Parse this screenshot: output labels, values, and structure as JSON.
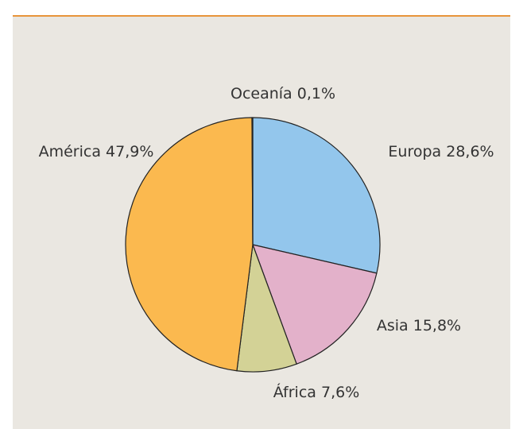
{
  "chart_data": {
    "type": "pie",
    "categories": [
      "Europa",
      "Asia",
      "África",
      "América",
      "Oceanía"
    ],
    "values": [
      28.6,
      15.8,
      7.6,
      47.9,
      0.1
    ],
    "value_labels": [
      "28,6%",
      "15,8%",
      "7,6%",
      "47,9%",
      "0,1%"
    ],
    "colors": [
      "#93c6ec",
      "#e3b1ca",
      "#d3d296",
      "#fbb94f",
      "#7a6a50"
    ]
  }
}
